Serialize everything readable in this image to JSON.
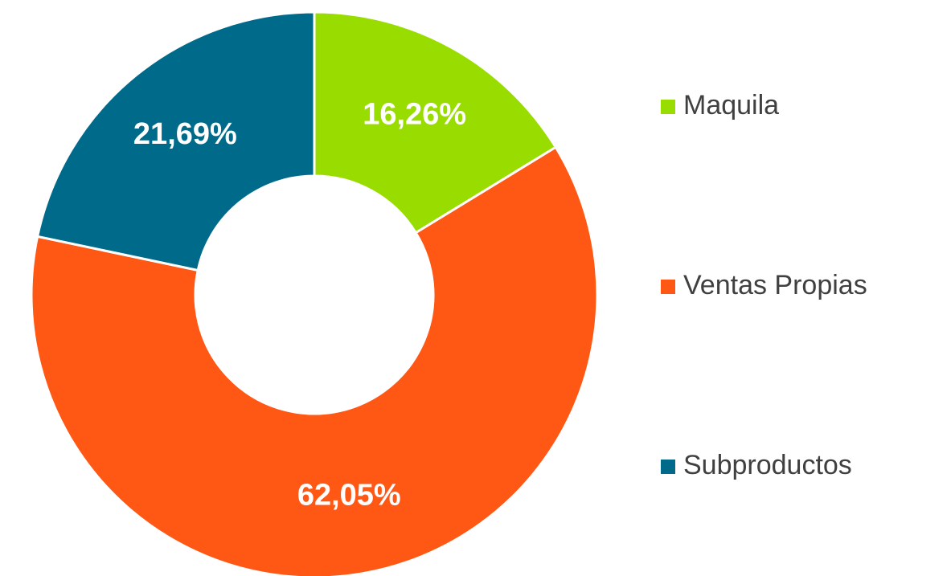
{
  "chart_data": {
    "type": "donut",
    "categories": [
      "Maquila",
      "Ventas Propias",
      "Subproductos"
    ],
    "values": [
      16.26,
      62.05,
      21.69
    ],
    "value_labels": [
      "16,26%",
      "62,05%",
      "21,69%"
    ],
    "colors": [
      "#99dd00",
      "#ff5714",
      "#006a8a"
    ],
    "legend": "right"
  }
}
